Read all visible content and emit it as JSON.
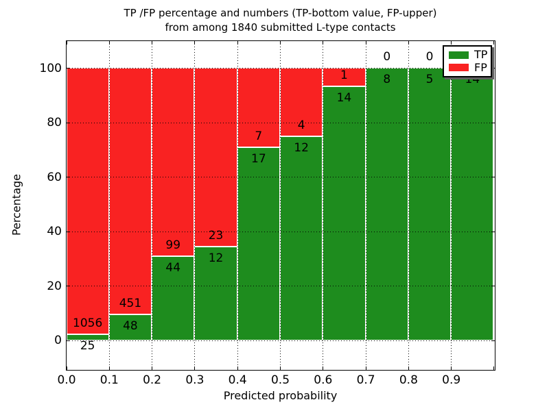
{
  "chart_data": {
    "type": "bar",
    "subtype": "stacked-percentage-histogram",
    "title_line1": "TP /FP percentage and numbers (TP-bottom value, FP-upper)",
    "title_line2": "from among 1840 submitted L-type contacts",
    "total_submitted": "1840",
    "xlabel": "Predicted probability",
    "ylabel": "Percentage",
    "xtick_labels": [
      "0.0",
      "0.1",
      "0.2",
      "0.3",
      "0.4",
      "0.5",
      "0.6",
      "0.7",
      "0.8",
      "0.9"
    ],
    "ytick_values": [
      0,
      20,
      40,
      60,
      80,
      100
    ],
    "xlim": [
      0.0,
      1.0
    ],
    "ylim": [
      -10.5,
      110
    ],
    "grid": "dotted, drawn over bars",
    "legend_position": "upper right",
    "legend": [
      {
        "label": "TP",
        "color": "#1e8c1e"
      },
      {
        "label": "FP",
        "color": "#f92222"
      }
    ],
    "colors": {
      "tp": "#1e8c1e",
      "fp": "#f92222"
    },
    "bars": [
      {
        "bin": "0.0-0.1",
        "tp": 25,
        "fp": 1056
      },
      {
        "bin": "0.1-0.2",
        "tp": 48,
        "fp": 451
      },
      {
        "bin": "0.2-0.3",
        "tp": 44,
        "fp": 99
      },
      {
        "bin": "0.3-0.4",
        "tp": 12,
        "fp": 23
      },
      {
        "bin": "0.4-0.5",
        "tp": 17,
        "fp": 7
      },
      {
        "bin": "0.5-0.6",
        "tp": 12,
        "fp": 4
      },
      {
        "bin": "0.6-0.7",
        "tp": 14,
        "fp": 1
      },
      {
        "bin": "0.7-0.8",
        "tp": 8,
        "fp": 0
      },
      {
        "bin": "0.8-0.9",
        "tp": 5,
        "fp": 0
      },
      {
        "bin": "0.9-1.0",
        "tp": 14,
        "fp": 0
      }
    ],
    "bar_value_labels": "TP count below green/red boundary, FP count above it; FP label of last bar hidden behind legend"
  }
}
